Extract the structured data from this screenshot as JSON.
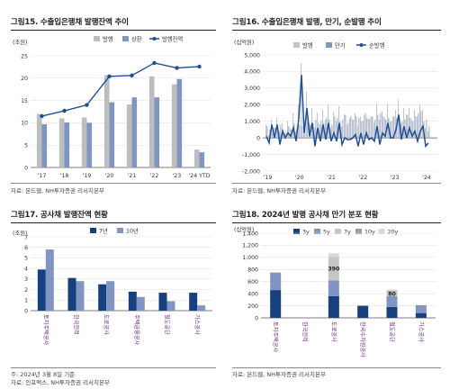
{
  "panels": {
    "p15": {
      "title": "그림15. 수출입은행채 발행잔액 추이",
      "source": "자료: 본드웹, NH투자증권 리서치본부"
    },
    "p16": {
      "title": "그림16. 수출입은행채 발행, 만기, 순발행 추이",
      "source": "자료: 본드웹, NH투자증권 리서치본부"
    },
    "p17": {
      "title": "그림17. 공사채 발행잔액 현황",
      "note": "주: 2024년 3월 8일 기준",
      "source": "자료: 인포맥스, NH투자증권 리서치본부"
    },
    "p18": {
      "title": "그림18. 2024년 발행 공사채 만기 분포 현황",
      "source": "자료: 본드웹, NH투자증권 리서치본부"
    }
  },
  "chart_data": [
    {
      "type": "bar",
      "id": "p15",
      "unit": "(조원)",
      "categories": [
        "'17",
        "'18",
        "'19",
        "'20",
        "'21",
        "'22",
        "'23",
        "'24 YTD"
      ],
      "series": [
        {
          "name": "발행",
          "kind": "bar",
          "color": "#bdbdbd",
          "values": [
            12.0,
            11.0,
            11.2,
            20.7,
            14.1,
            20.4,
            18.6,
            4.0
          ]
        },
        {
          "name": "상환",
          "kind": "bar",
          "color": "#8096c0",
          "values": [
            9.7,
            10.1,
            10.0,
            14.6,
            15.7,
            15.7,
            19.8,
            3.4
          ]
        },
        {
          "name": "발행잔액",
          "kind": "line",
          "color": "#1f4e96",
          "values": [
            11.5,
            12.7,
            14.0,
            20.4,
            20.6,
            23.4,
            22.3,
            22.6
          ]
        }
      ],
      "ylim": [
        0,
        25
      ],
      "yticks": [
        0,
        5,
        10,
        15,
        20,
        25
      ]
    },
    {
      "type": "bar",
      "id": "p16",
      "unit": "(십억원)",
      "xticks": [
        "'19",
        "'20",
        "'21",
        "'22",
        "'23",
        "'24"
      ],
      "ylim": [
        -2000,
        5000
      ],
      "yticks": [
        -2000,
        -1000,
        0,
        1000,
        2000,
        3000,
        4000,
        5000
      ],
      "ytick_labels": [
        "-2,000",
        "-1,000",
        "0",
        "1,000",
        "2,000",
        "3,000",
        "4,000",
        "5,000"
      ],
      "series": [
        {
          "name": "발행",
          "kind": "bar",
          "color": "#c6c6c6",
          "values": [
            800,
            200,
            1100,
            600,
            1200,
            400,
            900,
            300,
            1000,
            600,
            1500,
            400,
            2000,
            4500,
            1200,
            2800,
            900,
            1800,
            600,
            1500,
            800,
            1700,
            1100,
            2000,
            600,
            1600,
            1000,
            1900,
            700,
            1400,
            800,
            1200,
            1100,
            1500,
            700,
            1300,
            1000,
            1500,
            1100,
            1300,
            900,
            2100,
            1100,
            1600,
            1200,
            2100,
            1000,
            1300,
            1700,
            2300,
            900,
            1800,
            1400,
            1800,
            1100,
            1700,
            1300,
            2000,
            1700,
            600,
            400
          ]
        },
        {
          "name": "만기",
          "kind": "bar",
          "color": "#8096c0",
          "values": [
            700,
            500,
            300,
            600,
            400,
            800,
            500,
            300,
            700,
            500,
            900,
            600,
            800,
            700,
            900,
            1000,
            800,
            900,
            1100,
            900,
            1000,
            900,
            1200,
            1100,
            800,
            1300,
            1200,
            1000,
            1100,
            1400,
            900,
            1300,
            1100,
            1300,
            1200,
            1000,
            1400,
            1200,
            1200,
            1300,
            1100,
            1400,
            1500,
            1300,
            1100,
            1200,
            1000,
            1300,
            1200,
            900,
            1000,
            1100,
            1400,
            1200,
            1000,
            1300,
            1500,
            1600,
            1000,
            1100,
            700
          ]
        },
        {
          "name": "순발행",
          "kind": "line",
          "color": "#1f4e96",
          "values": [
            100,
            -300,
            800,
            0,
            800,
            -400,
            400,
            0,
            300,
            100,
            600,
            -200,
            1200,
            3800,
            300,
            1800,
            100,
            900,
            -500,
            600,
            -200,
            800,
            -100,
            900,
            -200,
            300,
            -200,
            900,
            -400,
            0,
            -100,
            -100,
            0,
            200,
            -500,
            300,
            -400,
            300,
            -100,
            0,
            -200,
            700,
            -400,
            300,
            100,
            900,
            0,
            0,
            500,
            1400,
            -100,
            700,
            0,
            600,
            100,
            400,
            -200,
            400,
            700,
            -500,
            -300
          ]
        }
      ]
    },
    {
      "type": "bar",
      "id": "p17",
      "unit": "(조원)",
      "categories": [
        "토지주택공사",
        "한국전력",
        "도로공사",
        "주택금융공사",
        "철도공단",
        "가스공사"
      ],
      "series": [
        {
          "name": "7년",
          "color": "#17407e",
          "values": [
            3.9,
            3.1,
            2.5,
            1.8,
            1.7,
            1.7
          ]
        },
        {
          "name": "10년",
          "color": "#8096c0",
          "values": [
            5.8,
            2.8,
            2.8,
            1.3,
            0.9,
            0.5
          ]
        }
      ],
      "ylim": [
        0,
        7
      ],
      "yticks": [
        0,
        1,
        2,
        3,
        4,
        5,
        6,
        7
      ]
    },
    {
      "type": "bar",
      "stacked": true,
      "id": "p18",
      "unit": "(십억원)",
      "categories": [
        "토지주택공사",
        "한국전력",
        "도로공사",
        "한국수자원공사",
        "철도공단",
        "가스공사"
      ],
      "series": [
        {
          "name": "3y",
          "color": "#17407e",
          "values": [
            460,
            0,
            360,
            200,
            180,
            80
          ]
        },
        {
          "name": "5y",
          "color": "#8096c0",
          "values": [
            290,
            0,
            260,
            0,
            180,
            130
          ]
        },
        {
          "name": "7y",
          "color": "#c6c6c6",
          "values": [
            0,
            0,
            390,
            0,
            80,
            0
          ]
        },
        {
          "name": "10y",
          "color": "#9e9e9e",
          "values": [
            0,
            0,
            0,
            0,
            10,
            0
          ]
        },
        {
          "name": "20y",
          "color": "#d9d9d9",
          "values": [
            0,
            0,
            60,
            0,
            20,
            0
          ]
        }
      ],
      "data_labels": [
        {
          "category": "도로공사",
          "series": "7y",
          "text": "390"
        },
        {
          "category": "철도공단",
          "series": "7y",
          "text": "80"
        }
      ],
      "ylim": [
        0,
        1400
      ],
      "yticks": [
        0,
        200,
        400,
        600,
        800,
        1000,
        1200,
        1400
      ],
      "ytick_labels": [
        "0",
        "200",
        "400",
        "600",
        "800",
        "1,000",
        "1,200",
        "1,400"
      ]
    }
  ]
}
